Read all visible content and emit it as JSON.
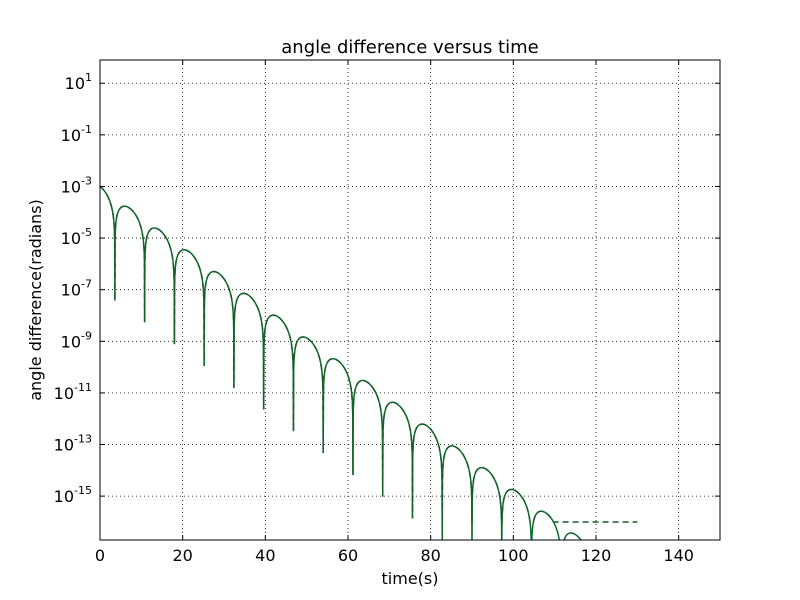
{
  "chart_data": {
    "type": "line",
    "title": "angle difference versus time",
    "xlabel": "time(s)",
    "ylabel": "angle difference(radians)",
    "xlim": [
      0,
      150
    ],
    "ylim_log10": [
      -16.7,
      1.9
    ],
    "yscale": "log",
    "grid": true,
    "x_ticks": [
      "0",
      "20",
      "40",
      "60",
      "80",
      "100",
      "120",
      "140"
    ],
    "y_ticks": [
      {
        "base": "10",
        "exp": "1"
      },
      {
        "base": "10",
        "exp": "-1"
      },
      {
        "base": "10",
        "exp": "-3"
      },
      {
        "base": "10",
        "exp": "-5"
      },
      {
        "base": "10",
        "exp": "-7"
      },
      {
        "base": "10",
        "exp": "-9"
      },
      {
        "base": "10",
        "exp": "-11"
      },
      {
        "base": "10",
        "exp": "-13"
      },
      {
        "base": "10",
        "exp": "-15"
      }
    ],
    "y_tick_exponents": [
      1,
      -1,
      -3,
      -5,
      -7,
      -9,
      -11,
      -13,
      -15
    ],
    "series": [
      {
        "style": "solid",
        "color": "#2ca02c",
        "envelope_start": 0.001,
        "decay_per_second": 0.27,
        "half_period_s": 3.6,
        "x_end": 128.5
      },
      {
        "style": "dashed",
        "color": "#1f4fb0",
        "envelope_start": 0.001,
        "decay_per_second": 0.27,
        "half_period_s": 3.6,
        "floor": 1e-16,
        "x_end": 130
      }
    ],
    "colors": {
      "line_main": "#0b6b2a",
      "line_dashed": "#1a5c2a",
      "grid": "#000000"
    }
  }
}
